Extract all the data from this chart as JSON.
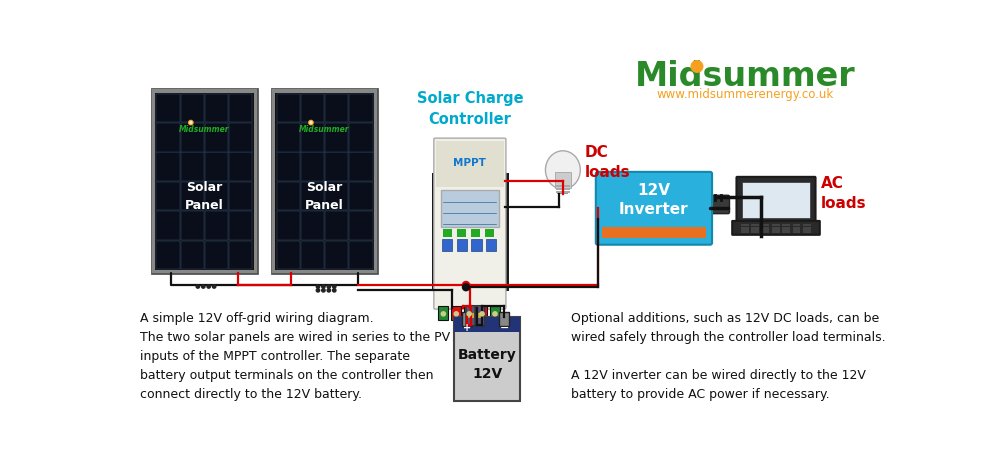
{
  "bg_color": "#f8f8f8",
  "border_color": "#cccccc",
  "brand_color": "#2a8a2a",
  "brand_orange": "#f5a020",
  "brand_url": "www.midsummerenergy.co.uk",
  "charge_controller_label": "Solar Charge\nController",
  "charge_controller_color": "#00aacc",
  "mppt_label": "MPPT",
  "dc_loads_label": "DC\nloads",
  "ac_loads_label": "AC\nloads",
  "dc_loads_color": "#cc0000",
  "ac_loads_color": "#cc0000",
  "inverter_label": "12V\nInverter",
  "inverter_color": "#2ab0dd",
  "inverter_orange": "#e87020",
  "battery_label": "Battery\n12V",
  "solar_panel_label": "Solar\nPanel",
  "wire_red": "#dd0000",
  "wire_black": "#111111",
  "text_left": "A simple 12V off-grid wiring diagram.\nThe two solar panels are wired in series to the PV\ninputs of the MPPT controller. The separate\nbattery output terminals on the controller then\nconnect directly to the 12V battery.",
  "text_right": "Optional additions, such as 12V DC loads, can be\nwired safely through the controller load terminals.\n\nA 12V inverter can be wired directly to the 12V\nbattery to provide AC power if necessary.",
  "font_size_body": 9.0
}
